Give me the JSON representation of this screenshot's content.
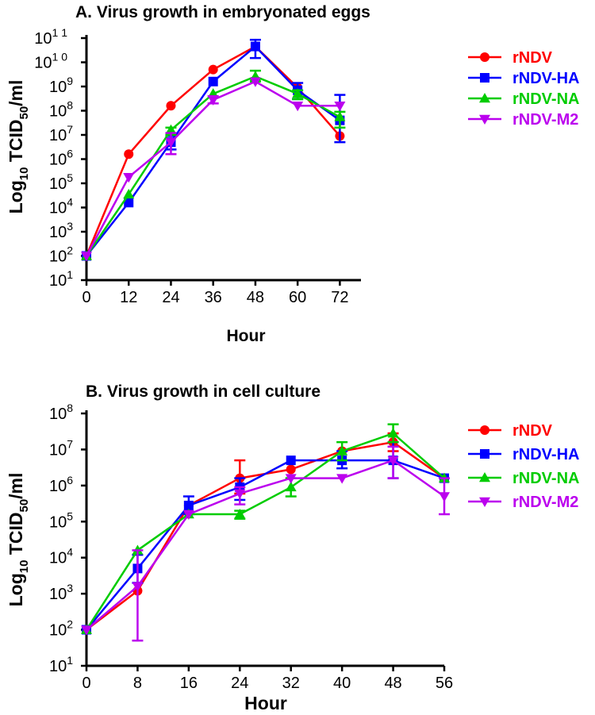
{
  "colors": {
    "rNDV": "#ff0000",
    "rNDV-HA": "#0000ff",
    "rNDV-NA": "#00cc00",
    "rNDV-M2": "#bb00ee",
    "axis": "#000000"
  },
  "chart_data": [
    {
      "type": "line",
      "title": "A. Virus growth in embryonated eggs",
      "xlabel": "Hour",
      "ylabel_main": "Log",
      "ylabel_sub": "10",
      "ylabel_rest": " TCID",
      "ylabel_sub2": "50",
      "ylabel_end": "/ml",
      "yscale": "log",
      "ylim": [
        10,
        100000000000
      ],
      "xlim": [
        0,
        78
      ],
      "x_ticks": [
        0,
        12,
        24,
        36,
        48,
        60,
        72
      ],
      "y_ticks": [
        {
          "base": "10",
          "exp": "1",
          "value": 10
        },
        {
          "base": "10",
          "exp": "2",
          "value": 100
        },
        {
          "base": "10",
          "exp": "3",
          "value": 1000
        },
        {
          "base": "10",
          "exp": "4",
          "value": 10000
        },
        {
          "base": "10",
          "exp": "5",
          "value": 100000
        },
        {
          "base": "10",
          "exp": "6",
          "value": 1000000
        },
        {
          "base": "10",
          "exp": "7",
          "value": 10000000
        },
        {
          "base": "10",
          "exp": "8",
          "value": 100000000
        },
        {
          "base": "10",
          "exp": "9",
          "value": 1000000000
        },
        {
          "base": "10",
          "exp": "1 0",
          "value": 10000000000
        },
        {
          "base": "10",
          "exp": "1 1",
          "value": 100000000000
        }
      ],
      "legend_position": "right",
      "series": [
        {
          "name": "rNDV",
          "marker": "circle",
          "x": [
            0,
            12,
            24,
            36,
            48,
            60,
            72
          ],
          "y": [
            100,
            1600000,
            160000000,
            5000000000,
            45000000000,
            900000000,
            9000000
          ],
          "err_low": [
            100,
            1600000,
            160000000,
            5000000000,
            45000000000,
            900000000,
            9000000
          ],
          "err_high": [
            100,
            1600000,
            160000000,
            5000000000,
            45000000000,
            900000000,
            9000000
          ]
        },
        {
          "name": "rNDV-HA",
          "marker": "square",
          "x": [
            0,
            12,
            24,
            36,
            48,
            60,
            72
          ],
          "y": [
            100,
            16000,
            5000000,
            1600000000,
            45000000000,
            700000000,
            40000000
          ],
          "err_low": [
            100,
            16000,
            2500000,
            1600000000,
            15000000000,
            300000000,
            5000000
          ],
          "err_high": [
            100,
            16000,
            9000000,
            1600000000,
            85000000000,
            1400000000,
            450000000
          ]
        },
        {
          "name": "rNDV-NA",
          "marker": "triangle-up",
          "x": [
            0,
            12,
            24,
            36,
            48,
            60,
            72
          ],
          "y": [
            100,
            35000,
            16000000,
            500000000,
            2600000000,
            500000000,
            55000000
          ],
          "err_low": [
            100,
            35000,
            10000000,
            500000000,
            1600000000,
            300000000,
            20000000
          ],
          "err_high": [
            100,
            35000,
            20000000,
            500000000,
            4500000000,
            700000000,
            90000000
          ]
        },
        {
          "name": "rNDV-M2",
          "marker": "triangle-down",
          "x": [
            0,
            12,
            24,
            36,
            48,
            60,
            72
          ],
          "y": [
            100,
            180000,
            5000000,
            280000000,
            1600000000,
            160000000,
            160000000
          ],
          "err_low": [
            100,
            180000,
            1600000,
            200000000,
            1600000000,
            160000000,
            160000000
          ],
          "err_high": [
            100,
            180000,
            12000000,
            400000000,
            1600000000,
            160000000,
            160000000
          ]
        }
      ]
    },
    {
      "type": "line",
      "title": "B. Virus growth in cell culture",
      "xlabel": "Hour",
      "ylabel_main": "Log",
      "ylabel_sub": "10",
      "ylabel_rest": " TCID",
      "ylabel_sub2": "50",
      "ylabel_end": "/ml",
      "yscale": "log",
      "ylim": [
        10,
        100000000
      ],
      "xlim": [
        0,
        56
      ],
      "x_ticks": [
        0,
        8,
        16,
        24,
        32,
        40,
        48,
        56
      ],
      "y_ticks": [
        {
          "base": "10",
          "exp": "1",
          "value": 10
        },
        {
          "base": "10",
          "exp": "2",
          "value": 100
        },
        {
          "base": "10",
          "exp": "3",
          "value": 1000
        },
        {
          "base": "10",
          "exp": "4",
          "value": 10000
        },
        {
          "base": "10",
          "exp": "5",
          "value": 100000
        },
        {
          "base": "10",
          "exp": "6",
          "value": 1000000
        },
        {
          "base": "10",
          "exp": "7",
          "value": 10000000
        },
        {
          "base": "10",
          "exp": "8",
          "value": 100000000
        }
      ],
      "legend_position": "right",
      "series": [
        {
          "name": "rNDV",
          "marker": "circle",
          "x": [
            0,
            8,
            16,
            24,
            32,
            40,
            48,
            56
          ],
          "y": [
            100,
            1200,
            280000,
            1600000,
            2800000,
            9000000,
            16000000,
            1600000
          ],
          "err_low": [
            100,
            1200,
            280000,
            600000,
            2800000,
            9000000,
            9000000,
            1600000
          ],
          "err_high": [
            100,
            1200,
            280000,
            5000000,
            2800000,
            9000000,
            28000000,
            1600000
          ]
        },
        {
          "name": "rNDV-HA",
          "marker": "square",
          "x": [
            0,
            8,
            16,
            24,
            32,
            40,
            48,
            56
          ],
          "y": [
            100,
            5000,
            280000,
            900000,
            5000000,
            5000000,
            5000000,
            1600000
          ],
          "err_low": [
            100,
            2000,
            160000,
            400000,
            5000000,
            3000000,
            1600000,
            1600000
          ],
          "err_high": [
            100,
            12000,
            500000,
            1600000,
            5000000,
            9000000,
            16000000,
            1600000
          ]
        },
        {
          "name": "rNDV-NA",
          "marker": "triangle-up",
          "x": [
            0,
            8,
            16,
            24,
            32,
            40,
            48,
            56
          ],
          "y": [
            100,
            16000,
            160000,
            160000,
            900000,
            9000000,
            28000000,
            1600000
          ],
          "err_low": [
            100,
            16000,
            160000,
            120000,
            500000,
            5000000,
            16000000,
            1600000
          ],
          "err_high": [
            100,
            16000,
            160000,
            200000,
            1600000,
            16000000,
            50000000,
            1600000
          ]
        },
        {
          "name": "rNDV-M2",
          "marker": "triangle-down",
          "x": [
            0,
            8,
            16,
            24,
            32,
            40,
            48,
            56
          ],
          "y": [
            100,
            1600,
            160000,
            600000,
            1600000,
            1600000,
            5000000,
            500000
          ],
          "err_low": [
            100,
            50,
            160000,
            300000,
            1600000,
            1600000,
            1600000,
            160000
          ],
          "err_high": [
            100,
            16000,
            160000,
            900000,
            1600000,
            1600000,
            12000000,
            1600000
          ]
        }
      ]
    }
  ]
}
